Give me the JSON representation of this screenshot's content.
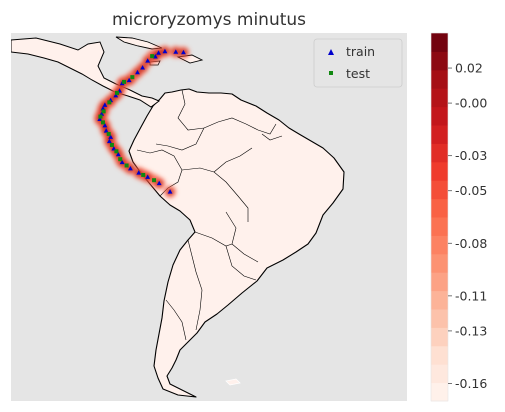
{
  "chart_data": {
    "type": "heatmap",
    "title": "microryzomys minutus",
    "legend": {
      "placement": "top-right",
      "entries": [
        {
          "label": "train",
          "color": "#0000cc",
          "marker": "triangle"
        },
        {
          "label": "test",
          "color": "#118811",
          "marker": "square"
        }
      ]
    },
    "colorbar": {
      "colormap": "Reds",
      "range": [
        -0.17,
        0.04
      ],
      "ticks": [
        0.02,
        -0.0,
        -0.03,
        -0.05,
        -0.08,
        -0.11,
        -0.13,
        -0.16
      ],
      "tick_labels": [
        "0.02",
        "-0.00",
        "-0.03",
        "-0.05",
        "-0.08",
        "-0.11",
        "-0.13",
        "-0.16"
      ],
      "levels": 20
    },
    "map": {
      "region": "South America",
      "lon_range": [
        -93,
        -31
      ],
      "lat_range": [
        -56,
        14
      ],
      "land_color": "#fff1ec",
      "ocean_color": "#e5e5e5"
    },
    "train_points": [
      [
        -68.9,
        10.5
      ],
      [
        -70.4,
        9.5
      ],
      [
        -71.6,
        8.7
      ],
      [
        -69.9,
        10.2
      ],
      [
        -67.2,
        10.4
      ],
      [
        -66.0,
        10.3
      ],
      [
        -72.4,
        7.4
      ],
      [
        -73.2,
        6.5
      ],
      [
        -74.5,
        5.0
      ],
      [
        -75.6,
        4.4
      ],
      [
        -76.0,
        3.0
      ],
      [
        -76.6,
        2.1
      ],
      [
        -77.4,
        1.2
      ],
      [
        -78.3,
        0.3
      ],
      [
        -78.6,
        -0.4
      ],
      [
        -78.8,
        -1.4
      ],
      [
        -79.1,
        -2.4
      ],
      [
        -78.3,
        -3.6
      ],
      [
        -78.1,
        -4.6
      ],
      [
        -77.4,
        -5.8
      ],
      [
        -77.6,
        -6.6
      ],
      [
        -76.9,
        -8.0
      ],
      [
        -76.2,
        -9.1
      ],
      [
        -75.6,
        -10.6
      ],
      [
        -74.3,
        -11.8
      ],
      [
        -73.0,
        -12.6
      ],
      [
        -71.6,
        -13.4
      ],
      [
        -69.8,
        -14.6
      ],
      [
        -68.1,
        -16.2
      ]
    ],
    "test_points": [
      [
        -70.9,
        9.6
      ],
      [
        -74.0,
        5.6
      ],
      [
        -75.3,
        4.7
      ],
      [
        -76.4,
        2.6
      ],
      [
        -77.6,
        0.8
      ],
      [
        -78.5,
        -0.9
      ],
      [
        -79.0,
        -1.9
      ],
      [
        -78.6,
        -3.0
      ],
      [
        -77.7,
        -5.2
      ],
      [
        -77.2,
        -7.3
      ],
      [
        -76.5,
        -8.5
      ],
      [
        -75.9,
        -10.0
      ],
      [
        -74.9,
        -11.2
      ],
      [
        -72.3,
        -13.0
      ],
      [
        -70.6,
        -14.0
      ]
    ]
  }
}
